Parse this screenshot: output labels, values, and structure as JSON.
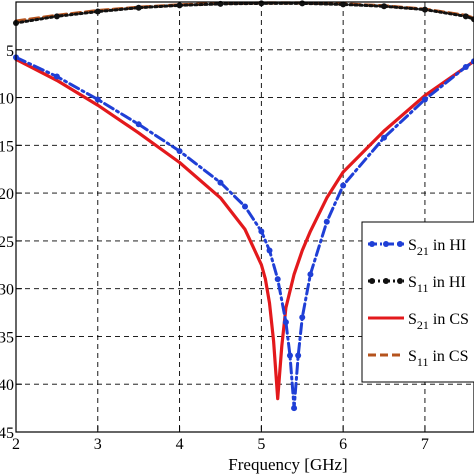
{
  "chart_data": {
    "type": "line",
    "xlabel": "Frequency [GHz]",
    "ylabel": "",
    "xlim": [
      2,
      7.6
    ],
    "ylim": [
      -45,
      0
    ],
    "x_ticks": [
      2,
      3,
      4,
      5,
      6,
      7
    ],
    "y_tick_labels": [
      "5",
      "10",
      "15",
      "20",
      "25",
      "30",
      "35",
      "40",
      "45"
    ],
    "y_tick_values": [
      -5,
      -10,
      -15,
      -20,
      -25,
      -30,
      -35,
      -40,
      -45
    ],
    "grid": true,
    "legend_position": "right",
    "series": [
      {
        "name_main": "S",
        "name_sub": "21",
        "name_rest": " in HI",
        "color": "#1f3fd6",
        "style": "dashdot-markers",
        "x": [
          2.0,
          2.5,
          3.0,
          3.5,
          4.0,
          4.5,
          4.8,
          5.0,
          5.1,
          5.2,
          5.3,
          5.35,
          5.4,
          5.45,
          5.5,
          5.6,
          5.8,
          6.0,
          6.5,
          7.0,
          7.5,
          7.6
        ],
        "y": [
          -5.8,
          -7.8,
          -10.2,
          -12.8,
          -15.6,
          -18.9,
          -21.4,
          -24.0,
          -26.0,
          -29.0,
          -33.5,
          -37.0,
          -42.5,
          -37.0,
          -33.0,
          -28.5,
          -23.0,
          -19.2,
          -14.2,
          -10.2,
          -6.8,
          -6.2
        ]
      },
      {
        "name_main": "S",
        "name_sub": "11",
        "name_rest": " in HI",
        "color": "#111111",
        "style": "dotted-markers",
        "x": [
          2.0,
          2.5,
          3.0,
          3.5,
          4.0,
          4.5,
          5.0,
          5.5,
          6.0,
          6.5,
          7.0,
          7.5,
          7.6
        ],
        "y": [
          -2.2,
          -1.5,
          -1.0,
          -0.6,
          -0.35,
          -0.2,
          -0.15,
          -0.15,
          -0.25,
          -0.45,
          -0.8,
          -1.5,
          -1.8
        ]
      },
      {
        "name_main": "S",
        "name_sub": "21",
        "name_rest": " in CS",
        "color": "#e3191c",
        "style": "solid",
        "x": [
          2.0,
          2.5,
          3.0,
          3.5,
          4.0,
          4.5,
          4.8,
          5.0,
          5.05,
          5.1,
          5.15,
          5.2,
          5.25,
          5.3,
          5.4,
          5.5,
          5.6,
          5.8,
          6.0,
          6.5,
          7.0,
          7.5,
          7.6
        ],
        "y": [
          -6.0,
          -8.2,
          -10.8,
          -13.7,
          -16.8,
          -20.5,
          -23.8,
          -27.5,
          -29.0,
          -31.5,
          -35.5,
          -41.5,
          -36.0,
          -32.0,
          -28.5,
          -26.0,
          -24.0,
          -20.5,
          -17.8,
          -13.5,
          -9.8,
          -6.8,
          -6.2
        ]
      },
      {
        "name_main": "S",
        "name_sub": "11",
        "name_rest": " in CS",
        "color": "#b5531d",
        "style": "dashed",
        "x": [
          2.0,
          2.5,
          3.0,
          3.5,
          4.0,
          4.5,
          5.0,
          5.5,
          6.0,
          6.5,
          7.0,
          7.5,
          7.6
        ],
        "y": [
          -2.0,
          -1.4,
          -0.9,
          -0.55,
          -0.3,
          -0.15,
          -0.1,
          -0.1,
          -0.2,
          -0.4,
          -0.75,
          -1.4,
          -1.7
        ]
      }
    ]
  }
}
